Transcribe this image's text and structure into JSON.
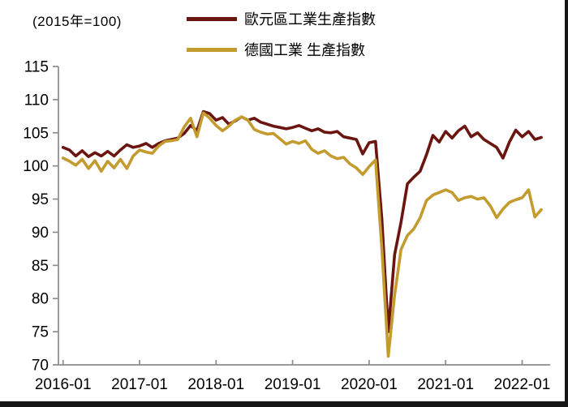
{
  "header": {
    "note": "(2015年=100)"
  },
  "chart_data": {
    "type": "line",
    "title": "",
    "xlabel": "",
    "ylabel": "",
    "note": "(2015年=100)",
    "grid": false,
    "legend_position": "top-center",
    "ylim": [
      70,
      115
    ],
    "y_ticks": [
      115,
      110,
      105,
      100,
      95,
      90,
      85,
      80,
      75,
      70
    ],
    "x_tick_labels": [
      "2016-01",
      "2017-01",
      "2018-01",
      "2019-01",
      "2020-01",
      "2021-01",
      "2022-01"
    ],
    "x_frequency": "monthly",
    "axis_color": "#8c8c8c",
    "text_color": "#000000",
    "x": [
      "2016-01",
      "2016-02",
      "2016-03",
      "2016-04",
      "2016-05",
      "2016-06",
      "2016-07",
      "2016-08",
      "2016-09",
      "2016-10",
      "2016-11",
      "2016-12",
      "2017-01",
      "2017-02",
      "2017-03",
      "2017-04",
      "2017-05",
      "2017-06",
      "2017-07",
      "2017-08",
      "2017-09",
      "2017-10",
      "2017-11",
      "2017-12",
      "2018-01",
      "2018-02",
      "2018-03",
      "2018-04",
      "2018-05",
      "2018-06",
      "2018-07",
      "2018-08",
      "2018-09",
      "2018-10",
      "2018-11",
      "2018-12",
      "2019-01",
      "2019-02",
      "2019-03",
      "2019-04",
      "2019-05",
      "2019-06",
      "2019-07",
      "2019-08",
      "2019-09",
      "2019-10",
      "2019-11",
      "2019-12",
      "2020-01",
      "2020-02",
      "2020-03",
      "2020-04",
      "2020-05",
      "2020-06",
      "2020-07",
      "2020-08",
      "2020-09",
      "2020-10",
      "2020-11",
      "2020-12",
      "2021-01",
      "2021-02",
      "2021-03",
      "2021-04",
      "2021-05",
      "2021-06",
      "2021-07",
      "2021-08",
      "2021-09",
      "2021-10",
      "2021-11",
      "2021-12",
      "2022-01",
      "2022-02",
      "2022-03",
      "2022-04"
    ],
    "series": [
      {
        "name": "歐元區工業生產指數",
        "color": "#6b1510",
        "values": [
          102.8,
          102.4,
          101.5,
          102.3,
          101.4,
          102.0,
          101.5,
          102.2,
          101.5,
          102.4,
          103.2,
          102.8,
          103.0,
          103.4,
          102.8,
          103.4,
          103.8,
          104.0,
          104.2,
          104.9,
          106.1,
          105.3,
          108.2,
          107.9,
          106.9,
          107.3,
          106.3,
          106.8,
          107.4,
          106.9,
          107.2,
          106.6,
          106.3,
          106.0,
          105.8,
          105.6,
          105.8,
          106.1,
          105.7,
          105.3,
          105.6,
          105.1,
          105.0,
          105.2,
          104.4,
          104.2,
          104.0,
          101.8,
          103.5,
          103.7,
          92.0,
          75.0,
          86.6,
          91.5,
          97.3,
          98.3,
          99.2,
          101.7,
          104.6,
          103.6,
          105.2,
          104.2,
          105.3,
          106.0,
          104.4,
          105.0,
          104.0,
          103.4,
          102.8,
          101.2,
          103.6,
          105.4,
          104.4,
          105.2,
          104.0,
          104.3
        ]
      },
      {
        "name": "德國工業 生產指數",
        "color": "#c39b2f",
        "values": [
          101.2,
          100.7,
          100.1,
          101.0,
          99.6,
          100.8,
          99.2,
          100.7,
          99.7,
          101.0,
          99.6,
          101.5,
          102.4,
          102.1,
          101.9,
          103.0,
          103.7,
          103.8,
          104.0,
          105.9,
          107.2,
          104.4,
          108.0,
          107.2,
          106.1,
          105.3,
          106.0,
          106.9,
          107.4,
          106.9,
          105.5,
          105.1,
          104.8,
          104.9,
          104.1,
          103.3,
          103.7,
          103.4,
          103.8,
          102.5,
          101.9,
          102.3,
          101.5,
          101.1,
          101.3,
          100.3,
          99.7,
          98.7,
          99.9,
          100.9,
          87.5,
          71.3,
          80.5,
          87.4,
          89.5,
          90.5,
          92.2,
          94.8,
          95.6,
          96.0,
          96.4,
          96.0,
          94.8,
          95.2,
          95.4,
          95.0,
          95.2,
          94.0,
          92.2,
          93.5,
          94.5,
          94.9,
          95.2,
          96.4,
          92.3,
          93.4
        ]
      }
    ]
  }
}
